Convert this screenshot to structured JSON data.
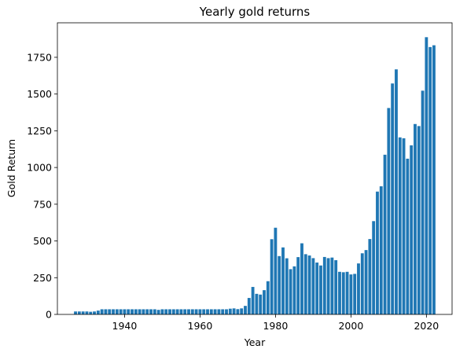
{
  "chart_data": {
    "type": "bar",
    "title": "Yearly gold returns",
    "xlabel": "Year",
    "ylabel": "Gold Return",
    "xlim": [
      1922.2,
      2026.8
    ],
    "ylim": [
      0,
      1985
    ],
    "x_ticks": [
      1940,
      1960,
      1980,
      2000,
      2020
    ],
    "y_ticks": [
      0,
      250,
      500,
      750,
      1000,
      1250,
      1500,
      1750
    ],
    "grid": false,
    "bar_color": "#1f77b4",
    "x": [
      1927,
      1928,
      1929,
      1930,
      1931,
      1932,
      1933,
      1934,
      1935,
      1936,
      1937,
      1938,
      1939,
      1940,
      1941,
      1942,
      1943,
      1944,
      1945,
      1946,
      1947,
      1948,
      1949,
      1950,
      1951,
      1952,
      1953,
      1954,
      1955,
      1956,
      1957,
      1958,
      1959,
      1960,
      1961,
      1962,
      1963,
      1964,
      1965,
      1966,
      1967,
      1968,
      1969,
      1970,
      1971,
      1972,
      1973,
      1974,
      1975,
      1976,
      1977,
      1978,
      1979,
      1980,
      1981,
      1982,
      1983,
      1984,
      1985,
      1986,
      1987,
      1988,
      1989,
      1990,
      1991,
      1992,
      1993,
      1994,
      1995,
      1996,
      1997,
      1998,
      1999,
      2000,
      2001,
      2002,
      2003,
      2004,
      2005,
      2006,
      2007,
      2008,
      2009,
      2010,
      2011,
      2012,
      2013,
      2014,
      2015,
      2016,
      2017,
      2018,
      2019,
      2020,
      2021,
      2022
    ],
    "values": [
      20,
      20,
      20,
      20,
      18,
      20,
      26,
      35,
      35,
      35,
      35,
      35,
      35,
      35,
      35,
      35,
      35,
      35,
      35,
      35,
      35,
      35,
      31,
      35,
      35,
      35,
      35,
      35,
      35,
      35,
      35,
      35,
      35,
      35,
      35,
      35,
      35,
      35,
      35,
      35,
      35,
      39,
      41,
      36,
      41,
      58,
      112,
      187,
      140,
      135,
      165,
      226,
      512,
      590,
      397,
      456,
      382,
      308,
      327,
      390,
      484,
      410,
      401,
      383,
      353,
      333,
      391,
      383,
      387,
      369,
      290,
      287,
      290,
      272,
      276,
      347,
      416,
      438,
      513,
      635,
      836,
      872,
      1087,
      1405,
      1572,
      1668,
      1205,
      1199,
      1060,
      1151,
      1296,
      1282,
      1523,
      1887,
      1820,
      1832
    ]
  }
}
